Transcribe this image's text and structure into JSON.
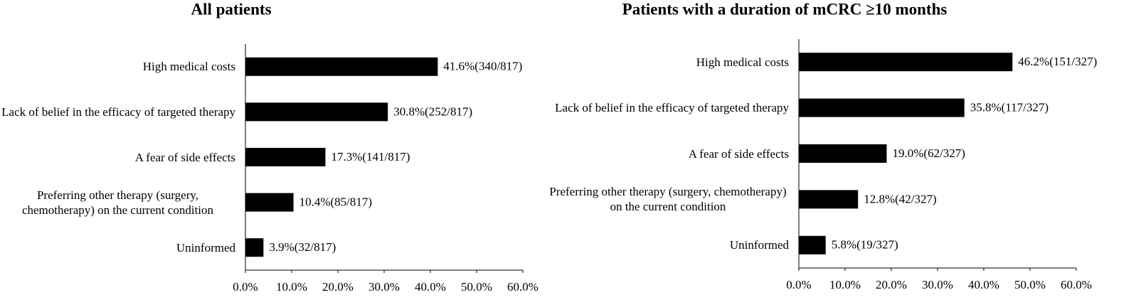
{
  "chart_data": [
    {
      "type": "bar",
      "orientation": "horizontal",
      "title": "All patients",
      "categories": [
        "High medical costs",
        "Lack of belief in the efficacy of targeted therapy",
        "A fear of side effects",
        "Preferring other therapy (surgery, chemotherapy) on the current condition",
        "Uninformed"
      ],
      "values": [
        41.6,
        30.8,
        17.3,
        10.4,
        3.9
      ],
      "value_labels": [
        "41.6%(340/817)",
        "30.8%(252/817)",
        "17.3%(141/817)",
        "10.4%(85/817)",
        "3.9%(32/817)"
      ],
      "color": "#000000",
      "xlim": [
        0,
        60
      ],
      "xticks": [
        {
          "value": 0,
          "label": "0.0%"
        },
        {
          "value": 10,
          "label": "10.0%"
        },
        {
          "value": 20,
          "label": "20.0%"
        },
        {
          "value": 30,
          "label": "30.0%"
        },
        {
          "value": 40,
          "label": "40.0%"
        },
        {
          "value": 50,
          "label": "50.0%"
        },
        {
          "value": 60,
          "label": "60.0%"
        }
      ]
    },
    {
      "type": "bar",
      "orientation": "horizontal",
      "title": "Patients with a duration of mCRC ≥10 months",
      "categories": [
        "High medical costs",
        "Lack of belief in the efficacy of targeted therapy",
        "A fear of side effects",
        "Preferring other therapy (surgery, chemotherapy) on the current condition",
        "Uninformed"
      ],
      "values": [
        46.2,
        35.8,
        19.0,
        12.8,
        5.8
      ],
      "value_labels": [
        "46.2%(151/327)",
        "35.8%(117/327)",
        "19.0%(62/327)",
        "12.8%(42/327)",
        "5.8%(19/327)"
      ],
      "color": "#000000",
      "xlim": [
        0,
        60
      ],
      "xticks": [
        {
          "value": 0,
          "label": "0.0%"
        },
        {
          "value": 10,
          "label": "10.0%"
        },
        {
          "value": 20,
          "label": "20.0%"
        },
        {
          "value": 30,
          "label": "30.0%"
        },
        {
          "value": 40,
          "label": "40.0%"
        },
        {
          "value": 50,
          "label": "50.0%"
        },
        {
          "value": 60,
          "label": "60.0%"
        }
      ]
    }
  ]
}
